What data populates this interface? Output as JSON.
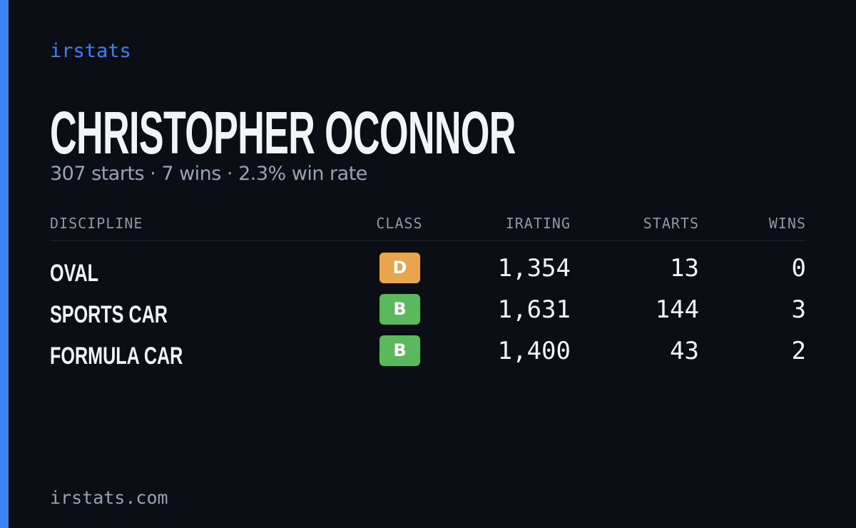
{
  "header": {
    "brand": "irstats",
    "title": "CHRISTOPHER OCONNOR",
    "subtitle": "307 starts · 7 wins · 2.3% win rate"
  },
  "table": {
    "columns": [
      "DISCIPLINE",
      "CLASS",
      "IRATING",
      "STARTS",
      "WINS"
    ],
    "rows": [
      [
        "OVAL",
        "D",
        "1,354",
        "13",
        "0"
      ],
      [
        "SPORTS CAR",
        "B",
        "1,631",
        "144",
        "3"
      ],
      [
        "FORMULA CAR",
        "B",
        "1,400",
        "43",
        "2"
      ]
    ],
    "class_colors": {
      "D": "#e8a64c",
      "B": "#5cb85c"
    }
  },
  "footer": {
    "site": "irstats.com"
  }
}
